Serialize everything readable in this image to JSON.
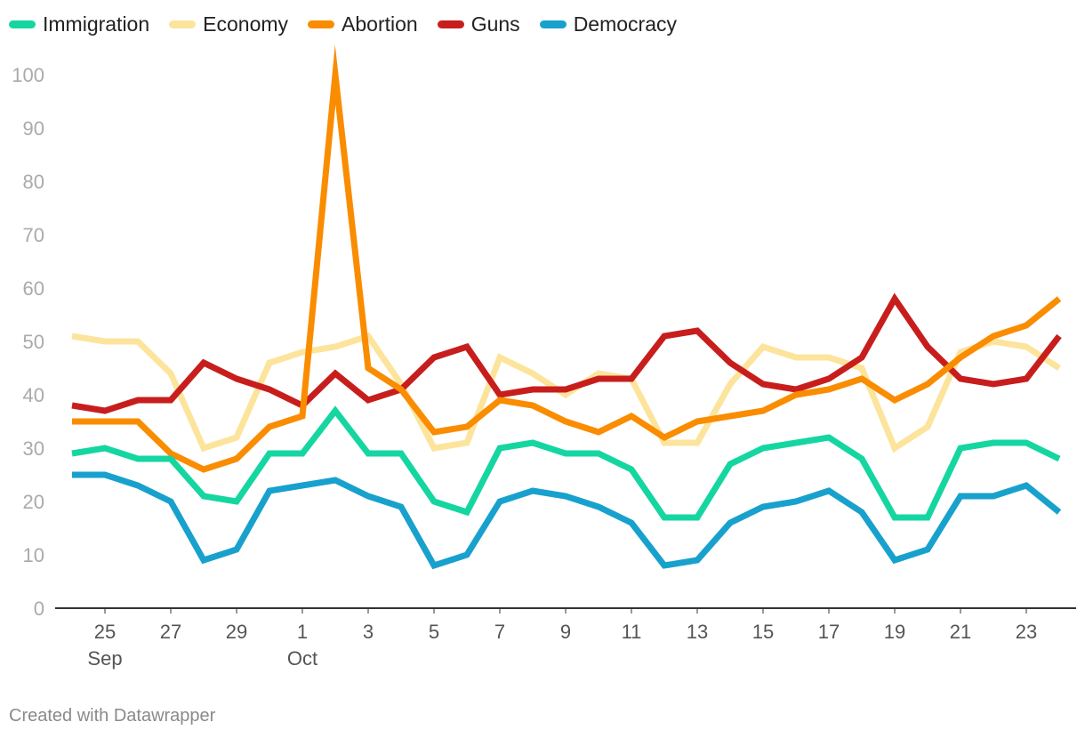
{
  "chart_data": {
    "type": "line",
    "title": "",
    "xlabel": "",
    "ylabel": "",
    "ylim": [
      0,
      100
    ],
    "y_ticks": [
      0,
      10,
      20,
      30,
      40,
      50,
      60,
      70,
      80,
      90,
      100
    ],
    "x": [
      "Sep 24",
      "Sep 25",
      "Sep 26",
      "Sep 27",
      "Sep 28",
      "Sep 29",
      "Sep 30",
      "Oct 1",
      "Oct 2",
      "Oct 3",
      "Oct 4",
      "Oct 5",
      "Oct 6",
      "Oct 7",
      "Oct 8",
      "Oct 9",
      "Oct 10",
      "Oct 11",
      "Oct 12",
      "Oct 13",
      "Oct 14",
      "Oct 15",
      "Oct 16",
      "Oct 17",
      "Oct 18",
      "Oct 19",
      "Oct 20",
      "Oct 21",
      "Oct 22",
      "Oct 23",
      "Oct 24"
    ],
    "x_tick_labels": [
      {
        "index": 1,
        "label": "25",
        "sublabel": "Sep"
      },
      {
        "index": 3,
        "label": "27",
        "sublabel": ""
      },
      {
        "index": 5,
        "label": "29",
        "sublabel": ""
      },
      {
        "index": 7,
        "label": "1",
        "sublabel": "Oct"
      },
      {
        "index": 9,
        "label": "3",
        "sublabel": ""
      },
      {
        "index": 11,
        "label": "5",
        "sublabel": ""
      },
      {
        "index": 13,
        "label": "7",
        "sublabel": ""
      },
      {
        "index": 15,
        "label": "9",
        "sublabel": ""
      },
      {
        "index": 17,
        "label": "11",
        "sublabel": ""
      },
      {
        "index": 19,
        "label": "13",
        "sublabel": ""
      },
      {
        "index": 21,
        "label": "15",
        "sublabel": ""
      },
      {
        "index": 23,
        "label": "17",
        "sublabel": ""
      },
      {
        "index": 25,
        "label": "19",
        "sublabel": ""
      },
      {
        "index": 27,
        "label": "21",
        "sublabel": ""
      },
      {
        "index": 29,
        "label": "23",
        "sublabel": ""
      }
    ],
    "series": [
      {
        "name": "Economy",
        "color": "#fde49c",
        "values": [
          51,
          50,
          50,
          44,
          30,
          32,
          46,
          48,
          49,
          51,
          42,
          30,
          31,
          47,
          44,
          40,
          44,
          43,
          31,
          31,
          42,
          49,
          47,
          47,
          45,
          30,
          34,
          48,
          50,
          49,
          45
        ]
      },
      {
        "name": "Guns",
        "color": "#c71e1d",
        "values": [
          38,
          37,
          39,
          39,
          46,
          43,
          41,
          38,
          44,
          39,
          41,
          47,
          49,
          40,
          41,
          41,
          43,
          43,
          51,
          52,
          46,
          42,
          41,
          43,
          47,
          58,
          49,
          43,
          42,
          43,
          51
        ]
      },
      {
        "name": "Abortion",
        "color": "#fa8c00",
        "values": [
          35,
          35,
          35,
          29,
          26,
          28,
          34,
          36,
          100,
          45,
          41,
          33,
          34,
          39,
          38,
          35,
          33,
          36,
          32,
          35,
          36,
          37,
          40,
          41,
          43,
          39,
          42,
          47,
          51,
          53,
          58
        ]
      },
      {
        "name": "Immigration",
        "color": "#15d6a1",
        "values": [
          29,
          30,
          28,
          28,
          21,
          20,
          29,
          29,
          37,
          29,
          29,
          20,
          18,
          30,
          31,
          29,
          29,
          26,
          17,
          17,
          27,
          30,
          31,
          32,
          28,
          17,
          17,
          30,
          31,
          31,
          28
        ]
      },
      {
        "name": "Democracy",
        "color": "#18a1cd",
        "values": [
          25,
          25,
          23,
          20,
          9,
          11,
          22,
          23,
          24,
          21,
          19,
          8,
          10,
          20,
          22,
          21,
          19,
          16,
          8,
          9,
          16,
          19,
          20,
          22,
          18,
          9,
          11,
          21,
          21,
          23,
          18
        ]
      }
    ]
  },
  "legend": [
    {
      "name": "Immigration",
      "color": "#15d6a1"
    },
    {
      "name": "Economy",
      "color": "#fde49c"
    },
    {
      "name": "Abortion",
      "color": "#fa8c00"
    },
    {
      "name": "Guns",
      "color": "#c71e1d"
    },
    {
      "name": "Democracy",
      "color": "#18a1cd"
    }
  ],
  "credit": "Created with Datawrapper"
}
